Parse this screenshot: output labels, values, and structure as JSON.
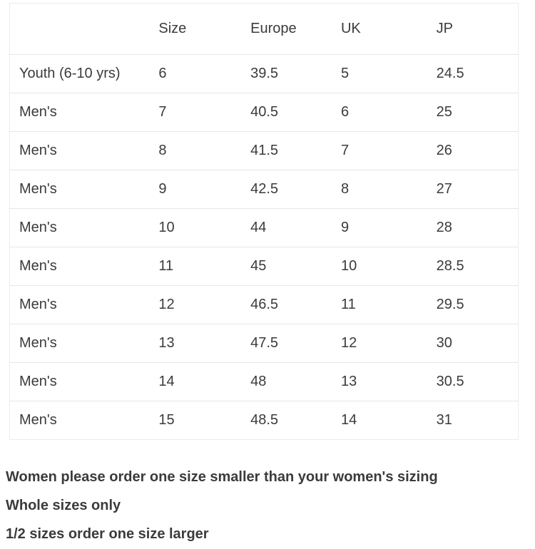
{
  "table": {
    "headers": [
      "",
      "Size",
      "Europe",
      "UK",
      "JP"
    ],
    "rows": [
      {
        "cells": [
          "Youth (6-10 yrs)",
          "6",
          "39.5",
          "5",
          "24.5"
        ]
      },
      {
        "cells": [
          "Men's",
          "7",
          "40.5",
          "6",
          "25"
        ]
      },
      {
        "cells": [
          "Men's",
          "8",
          "41.5",
          "7",
          "26"
        ]
      },
      {
        "cells": [
          "Men's",
          "9",
          "42.5",
          "8",
          "27"
        ]
      },
      {
        "cells": [
          "Men's",
          "10",
          "44",
          "9",
          "28"
        ]
      },
      {
        "cells": [
          "Men's",
          "11",
          "45",
          "10",
          "28.5"
        ]
      },
      {
        "cells": [
          "Men's",
          "12",
          "46.5",
          "11",
          "29.5"
        ]
      },
      {
        "cells": [
          "Men's",
          "13",
          "47.5",
          "12",
          "30"
        ]
      },
      {
        "cells": [
          "Men's",
          "14",
          "48",
          "13",
          "30.5"
        ]
      },
      {
        "cells": [
          "Men's",
          "15",
          "48.5",
          "14",
          "31"
        ]
      }
    ]
  },
  "notes": {
    "line1": "Women please order one size smaller than your women's sizing",
    "line2": "Whole sizes only",
    "line3": "1/2 sizes order one size larger"
  },
  "colors": {
    "text": "#3b3b3b",
    "table_border": "#ececec",
    "row_separator": "#e7e7e7",
    "background": "#ffffff"
  }
}
